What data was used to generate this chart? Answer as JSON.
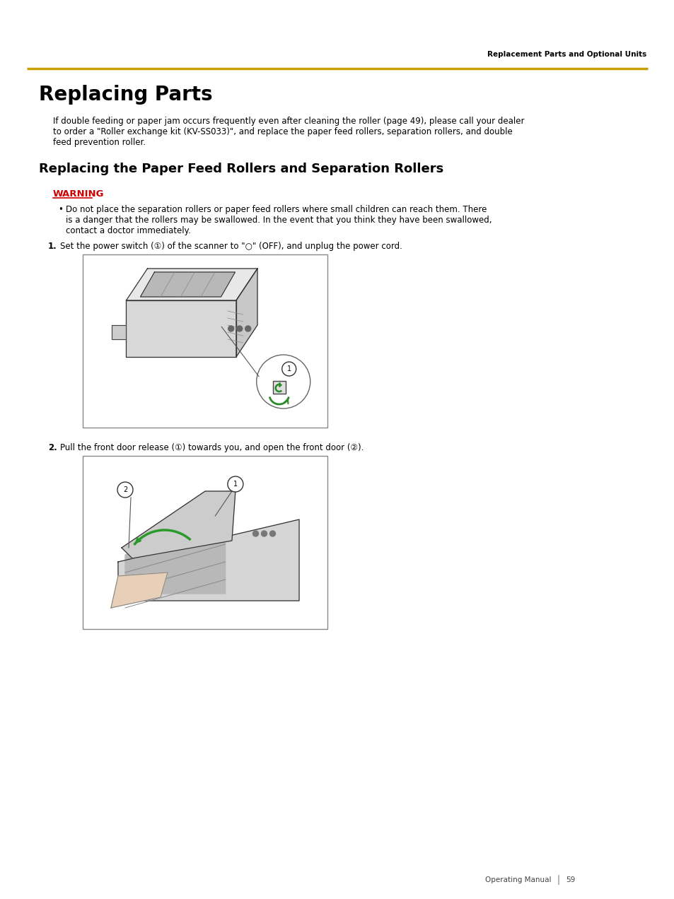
{
  "bg_color": "#ffffff",
  "header_line_color": "#C8A000",
  "header_text": "Replacement Parts and Optional Units",
  "header_text_color": "#000000",
  "header_text_size": 7.5,
  "title": "Replacing Parts",
  "title_size": 20,
  "body_text_color": "#000000",
  "warning_color": "#CC0000",
  "footer_text": "Operating Manual",
  "footer_page": "59",
  "footer_size": 7.5,
  "section1_title": "Replacing the Paper Feed Rollers and Separation Rollers",
  "section1_title_size": 13,
  "intro_line1": "If double feeding or paper jam occurs frequently even after cleaning the roller (page 49), please call your dealer",
  "intro_line2": "to order a \"Roller exchange kit (KV-SS033)\", and replace the paper feed rollers, separation rollers, and double",
  "intro_line3": "feed prevention roller.",
  "warning_label": "WARNING",
  "warn_line1": "Do not place the separation rollers or paper feed rollers where small children can reach them. There",
  "warn_line2": "is a danger that the rollers may be swallowed. In the event that you think they have been swallowed,",
  "warn_line3": "contact a doctor immediately.",
  "step1_num": "1.",
  "step1_text": "Set the power switch (①) of the scanner to \"○\" (OFF), and unplug the power cord.",
  "step2_num": "2.",
  "step2_text": "Pull the front door release (①) towards you, and open the front door (②).",
  "body_font_size": 8.5
}
